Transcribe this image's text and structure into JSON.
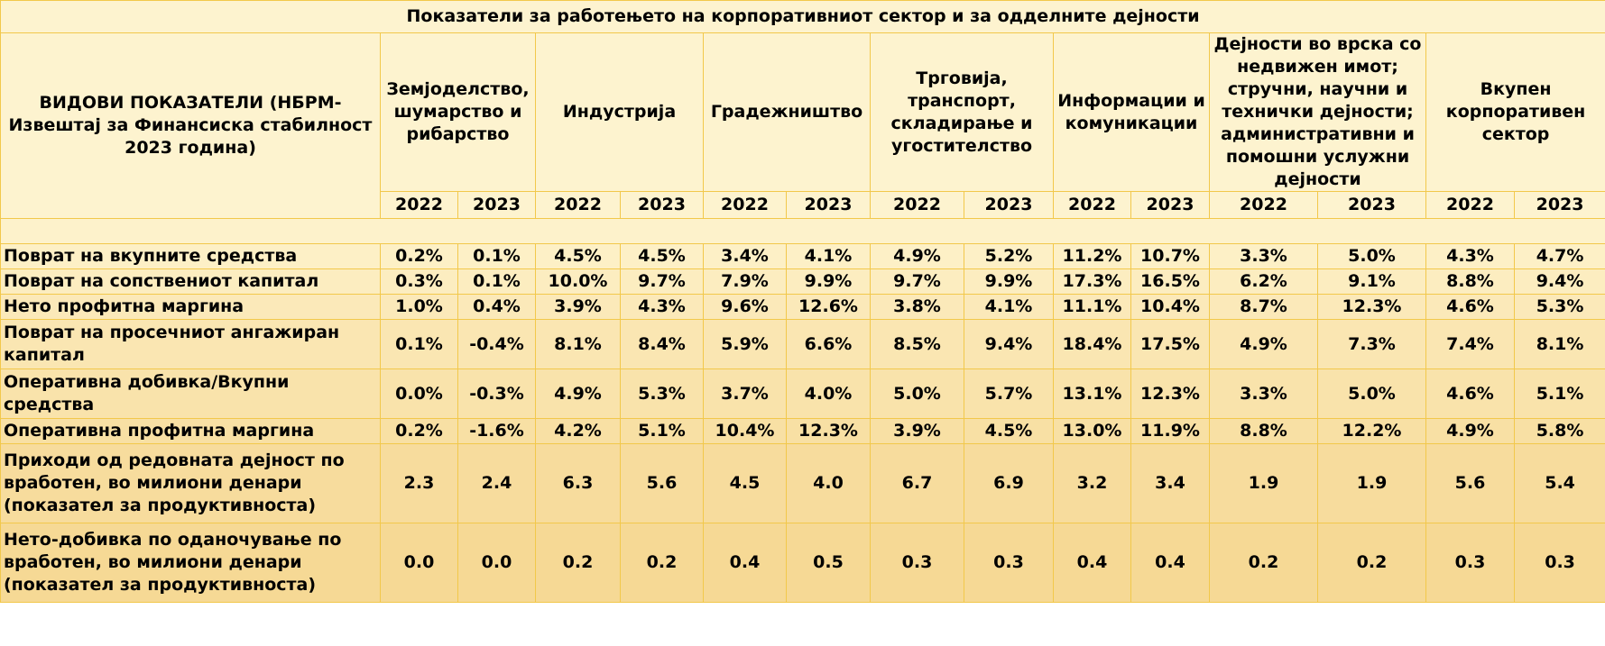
{
  "title": "Показатели за работењето на корпоративниот сектор и за одделните дејности",
  "indicator_header": "ВИДОВИ ПОКАЗАТЕЛИ (НБРМ- Извештај за Финансиска стабилност 2023 година)",
  "sectors": [
    "Земјоделство, шумарство и рибарство",
    "Индустрија",
    "Градежништво",
    "Трговија, транспорт, складирање и угостителство",
    "Информации и комуникации",
    "Дејности во врска со недвижен имот; стручни, научни и технички дејности; административни и помошни услужни дејности",
    "Вкупен корпоративен сектор"
  ],
  "years": [
    "2022",
    "2023"
  ],
  "rows": [
    {
      "label": "Поврат на вкупните средства",
      "values": [
        "0.2%",
        "0.1%",
        "4.5%",
        "4.5%",
        "3.4%",
        "4.1%",
        "4.9%",
        "5.2%",
        "11.2%",
        "10.7%",
        "3.3%",
        "5.0%",
        "4.3%",
        "4.7%"
      ]
    },
    {
      "label": "Поврат на сопствениот капитал",
      "values": [
        "0.3%",
        "0.1%",
        "10.0%",
        "9.7%",
        "7.9%",
        "9.9%",
        "9.7%",
        "9.9%",
        "17.3%",
        "16.5%",
        "6.2%",
        "9.1%",
        "8.8%",
        "9.4%"
      ]
    },
    {
      "label": "Нето профитна маргина",
      "values": [
        "1.0%",
        "0.4%",
        "3.9%",
        "4.3%",
        "9.6%",
        "12.6%",
        "3.8%",
        "4.1%",
        "11.1%",
        "10.4%",
        "8.7%",
        "12.3%",
        "4.6%",
        "5.3%"
      ]
    },
    {
      "label": "Поврат на просечниот ангажиран капитал",
      "values": [
        "0.1%",
        "-0.4%",
        "8.1%",
        "8.4%",
        "5.9%",
        "6.6%",
        "8.5%",
        "9.4%",
        "18.4%",
        "17.5%",
        "4.9%",
        "7.3%",
        "7.4%",
        "8.1%"
      ]
    },
    {
      "label": "Оперативна добивка/Вкупни средства",
      "values": [
        "0.0%",
        "-0.3%",
        "4.9%",
        "5.3%",
        "3.7%",
        "4.0%",
        "5.0%",
        "5.7%",
        "13.1%",
        "12.3%",
        "3.3%",
        "5.0%",
        "4.6%",
        "5.1%"
      ]
    },
    {
      "label": "Оперативна профитна маргина",
      "values": [
        "0.2%",
        "-1.6%",
        "4.2%",
        "5.1%",
        "10.4%",
        "12.3%",
        "3.9%",
        "4.5%",
        "13.0%",
        "11.9%",
        "8.8%",
        "12.2%",
        "4.9%",
        "5.8%"
      ]
    },
    {
      "label": "Приходи од редовната дејност по вработен, во милиони денари (показател за продуктивноста)",
      "values": [
        "2.3",
        "2.4",
        "6.3",
        "5.6",
        "4.5",
        "4.0",
        "6.7",
        "6.9",
        "3.2",
        "3.4",
        "1.9",
        "1.9",
        "5.6",
        "5.4"
      ]
    },
    {
      "label": "Нето-добивка по оданочување по вработен, во милиони денари (показател за продуктивноста)",
      "values": [
        "0.0",
        "0.0",
        "0.2",
        "0.2",
        "0.4",
        "0.5",
        "0.3",
        "0.3",
        "0.4",
        "0.4",
        "0.2",
        "0.2",
        "0.3",
        "0.3"
      ]
    }
  ]
}
